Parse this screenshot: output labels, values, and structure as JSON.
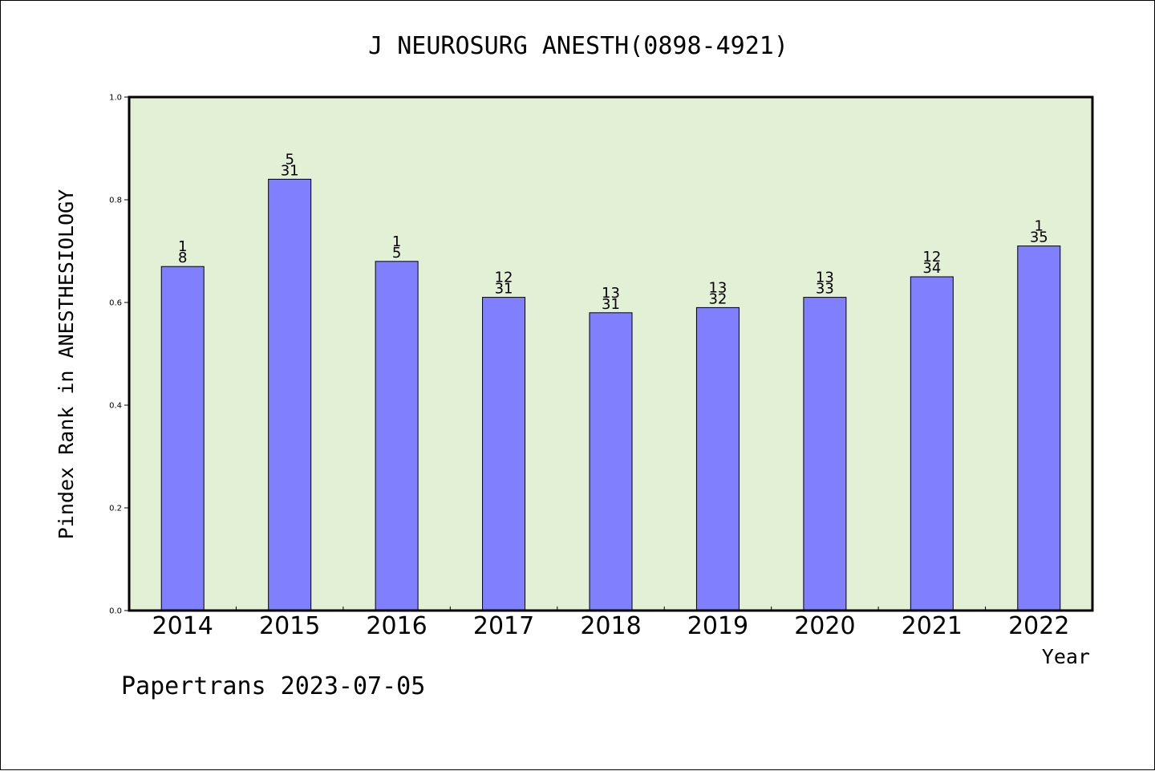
{
  "chart_data": {
    "type": "bar",
    "title": "J NEUROSURG ANESTH(0898-4921)",
    "xlabel": "Year",
    "ylabel": "Pindex Rank in ANESTHESIOLOGY",
    "categories": [
      "2014",
      "2015",
      "2016",
      "2017",
      "2018",
      "2019",
      "2020",
      "2021",
      "2022"
    ],
    "values": [
      0.67,
      0.84,
      0.68,
      0.61,
      0.58,
      0.59,
      0.61,
      0.65,
      0.71
    ],
    "rank_labels": [
      {
        "rank": "1",
        "total": "8"
      },
      {
        "rank": "5",
        "total": "31"
      },
      {
        "rank": "1",
        "total": "5"
      },
      {
        "rank": "12",
        "total": "31"
      },
      {
        "rank": "13",
        "total": "31"
      },
      {
        "rank": "13",
        "total": "32"
      },
      {
        "rank": "13",
        "total": "33"
      },
      {
        "rank": "12",
        "total": "34"
      },
      {
        "rank": "1",
        "total": "35"
      }
    ],
    "ylim": [
      0,
      1
    ],
    "yticks": [
      "0.0",
      "0.2",
      "0.4",
      "0.6",
      "0.8",
      "1.0"
    ],
    "grid": false,
    "colors": {
      "plot_bg": "#e2f0d6",
      "bar": "#8080ff"
    }
  },
  "footer": "Papertrans 2023-07-05"
}
